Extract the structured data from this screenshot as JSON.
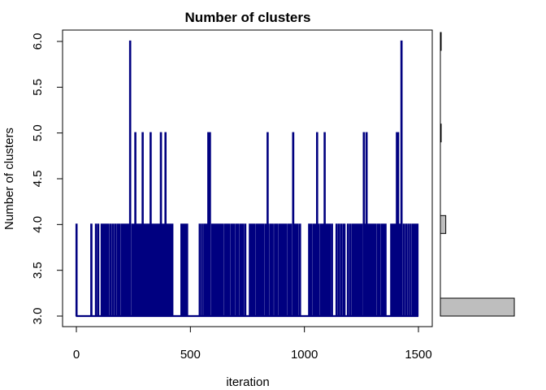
{
  "chart_data": {
    "type": "line",
    "title": "Number of clusters",
    "xlabel": "iteration",
    "ylabel": "Number of clusters",
    "xlim": [
      0,
      1500
    ],
    "ylim": [
      3.0,
      6.0
    ],
    "x_ticks": [
      "0",
      "500",
      "1000",
      "1500"
    ],
    "y_ticks": [
      "3.0",
      "3.5",
      "4.0",
      "4.5",
      "5.0",
      "5.5",
      "6.0"
    ],
    "series_color": "#000080",
    "traces": {
      "state4": [
        0,
        65,
        85,
        95,
        110,
        118,
        125,
        130,
        135,
        140,
        150,
        160,
        170,
        180,
        185,
        190,
        200,
        205,
        210,
        215,
        220,
        225,
        228,
        232,
        245,
        250,
        255,
        262,
        268,
        275,
        280,
        285,
        292,
        300,
        305,
        310,
        315,
        320,
        330,
        335,
        340,
        345,
        350,
        355,
        360,
        365,
        375,
        380,
        385,
        392,
        398,
        405,
        410,
        415,
        420,
        460,
        465,
        470,
        475,
        480,
        485,
        540,
        550,
        560,
        565,
        570,
        585,
        595,
        600,
        605,
        610,
        615,
        620,
        625,
        630,
        635,
        640,
        650,
        655,
        660,
        665,
        670,
        680,
        685,
        690,
        700,
        705,
        710,
        720,
        725,
        730,
        740,
        760,
        765,
        770,
        775,
        780,
        790,
        795,
        800,
        805,
        810,
        815,
        820,
        830,
        840,
        850,
        855,
        860,
        870,
        875,
        880,
        890,
        895,
        900,
        905,
        910,
        915,
        920,
        930,
        935,
        940,
        955,
        960,
        965,
        970,
        980,
        1020,
        1025,
        1030,
        1040,
        1045,
        1050,
        1060,
        1070,
        1075,
        1080,
        1095,
        1100,
        1105,
        1110,
        1120,
        1140,
        1150,
        1160,
        1170,
        1175,
        1190,
        1200,
        1210,
        1215,
        1220,
        1225,
        1230,
        1235,
        1240,
        1245,
        1250,
        1265,
        1280,
        1285,
        1290,
        1295,
        1300,
        1305,
        1310,
        1320,
        1325,
        1330,
        1340,
        1345,
        1350,
        1355,
        1380,
        1385,
        1390,
        1395,
        1400,
        1415,
        1420,
        1435,
        1445,
        1455,
        1465,
        1475,
        1480,
        1485,
        1490,
        1495
      ],
      "state5": [
        258,
        290,
        325,
        370,
        390,
        578,
        585,
        838,
        950,
        1055,
        1088,
        1260,
        1272,
        1405,
        1410
      ],
      "state6": [
        235,
        1425
      ]
    },
    "histogram": {
      "orientation": "horizontal",
      "bins": [
        3.0,
        4.0,
        5.0,
        6.0
      ],
      "counts": [
        1235,
        90,
        5,
        1
      ],
      "fill": "#bebebe"
    }
  }
}
